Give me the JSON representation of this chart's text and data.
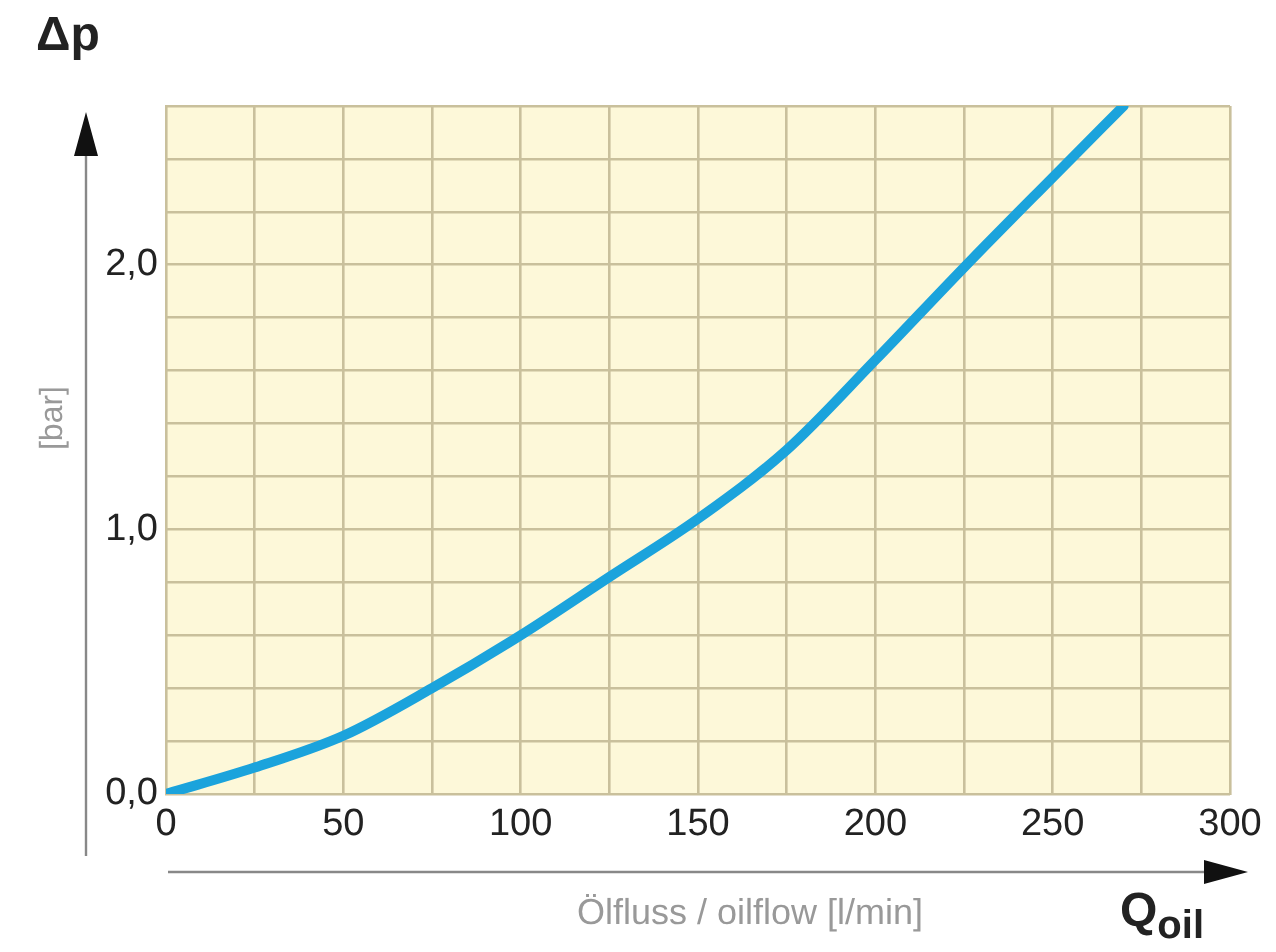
{
  "chart_data": {
    "type": "line",
    "title": "Δp",
    "ylabel": "[bar]",
    "xlabel": "Ölfluss / oilflow [l/min]",
    "annotations": [
      "Q$_{oil}$"
    ],
    "x": [
      0,
      25,
      50,
      75,
      100,
      125,
      150,
      175,
      200,
      225,
      250,
      270
    ],
    "series": [
      {
        "color": "#1ba3dc",
        "values": [
          0,
          0.1,
          0.22,
          0.4,
          0.6,
          0.82,
          1.04,
          1.3,
          1.64,
          1.99,
          2.33,
          2.6
        ]
      }
    ],
    "xlim": [
      0,
      300
    ],
    "ylim": [
      0,
      2.6
    ],
    "xticks": [
      0,
      {
        "value": 25,
        "label": null
      },
      50,
      {
        "value": 75,
        "label": null
      },
      100,
      {
        "value": 125,
        "label": null
      },
      150,
      {
        "value": 175,
        "label": null
      },
      200,
      {
        "value": 225,
        "label": null
      },
      250,
      {
        "value": 275,
        "label": null
      },
      300
    ],
    "yticks": [
      {
        "value": 0,
        "label": "0,0"
      },
      {
        "value": 0.2,
        "label": null
      },
      {
        "value": 0.4,
        "label": null
      },
      {
        "value": 0.6,
        "label": null
      },
      {
        "value": 0.8,
        "label": null
      },
      {
        "value": 1,
        "label": "1,0"
      },
      {
        "value": 1.2,
        "label": null
      },
      {
        "value": 1.4,
        "label": null
      },
      {
        "value": 1.6,
        "label": null
      },
      {
        "value": 1.8,
        "label": null
      },
      {
        "value": 2,
        "label": "2,0"
      },
      {
        "value": 2.2,
        "label": null
      },
      {
        "value": 2.4,
        "label": null
      },
      {
        "value": 2.6,
        "label": null
      }
    ],
    "grid": true,
    "legend": false,
    "marker": "none",
    "line_style": "solid"
  }
}
